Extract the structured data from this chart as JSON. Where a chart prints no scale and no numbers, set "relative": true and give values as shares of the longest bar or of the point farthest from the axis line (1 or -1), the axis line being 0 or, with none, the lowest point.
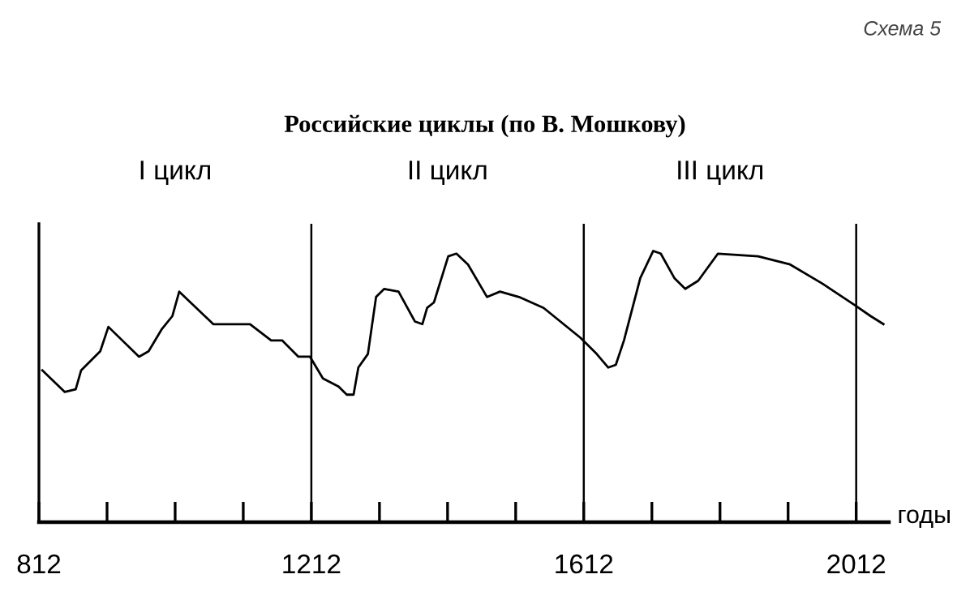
{
  "chart_data": {
    "type": "line",
    "title": "Российские циклы (по В. Мошкову)",
    "xlabel": "годы",
    "relative": true,
    "x": [
      817,
      850,
      866,
      874,
      902,
      914,
      959,
      973,
      992,
      1008,
      1018,
      1068,
      1122,
      1153,
      1169,
      1193,
      1210,
      1229,
      1252,
      1264,
      1274,
      1281,
      1295,
      1307,
      1319,
      1340,
      1364,
      1375,
      1382,
      1392,
      1413,
      1425,
      1442,
      1470,
      1489,
      1517,
      1553,
      1607,
      1631,
      1648,
      1659,
      1671,
      1695,
      1714,
      1725,
      1745,
      1761,
      1780,
      1809,
      1868,
      1915,
      1962,
      2010,
      2033,
      2052
    ],
    "series": [
      {
        "color": "#000000",
        "values": [
          0.56,
          0.48,
          0.49,
          0.56,
          0.63,
          0.72,
          0.61,
          0.63,
          0.71,
          0.76,
          0.85,
          0.73,
          0.73,
          0.67,
          0.67,
          0.61,
          0.61,
          0.53,
          0.5,
          0.47,
          0.47,
          0.57,
          0.62,
          0.83,
          0.86,
          0.85,
          0.74,
          0.73,
          0.79,
          0.81,
          0.98,
          0.99,
          0.95,
          0.83,
          0.85,
          0.83,
          0.79,
          0.68,
          0.62,
          0.57,
          0.58,
          0.67,
          0.9,
          1,
          0.99,
          0.9,
          0.86,
          0.89,
          0.99,
          0.98,
          0.95,
          0.88,
          0.8,
          0.76,
          0.73
        ]
      }
    ],
    "xlim": [
      812,
      2060
    ],
    "xticks": [
      812,
      {
        "value": 912,
        "label": null
      },
      {
        "value": 1012,
        "label": null
      },
      {
        "value": 1112,
        "label": null
      },
      1212,
      {
        "value": 1312,
        "label": null
      },
      {
        "value": 1412,
        "label": null
      },
      {
        "value": 1512,
        "label": null
      },
      1612,
      {
        "value": 1712,
        "label": null
      },
      {
        "value": 1812,
        "label": null
      },
      {
        "value": 1912,
        "label": null
      },
      2012
    ],
    "ref_lines": [
      {
        "axis": "x",
        "value": 1212,
        "color": "#000000"
      },
      {
        "axis": "x",
        "value": 1612,
        "color": "#000000"
      },
      {
        "axis": "x",
        "value": 2012,
        "color": "#000000"
      }
    ],
    "annotations": [
      "I цикл",
      "II цикл",
      "III цикл",
      "Схема 5"
    ],
    "grid": false,
    "legend": false,
    "marker": "none",
    "line_style": "solid"
  }
}
